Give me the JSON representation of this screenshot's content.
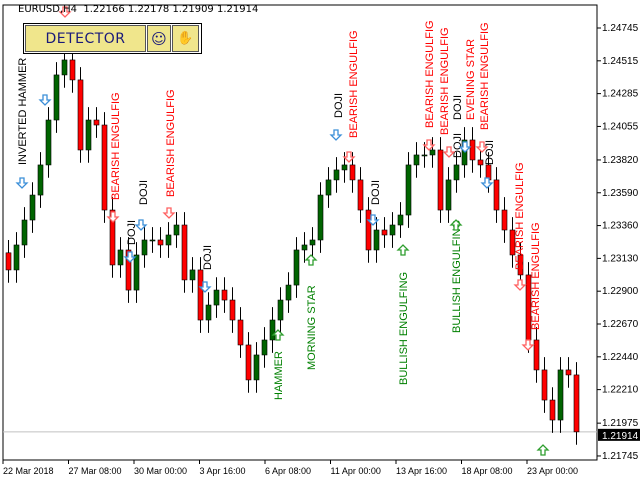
{
  "header": {
    "symbol": "EURUSD,H4",
    "ohlc": "1.22166 1.22178 1.21909 1.21914"
  },
  "panel": {
    "detector_label": "DETECTOR",
    "smiley_icon": "☺",
    "hand_icon": "✋"
  },
  "colors": {
    "bull": "#006400",
    "bear": "#ff0000",
    "bullish_label": "#008000",
    "bearish_label": "#ff0000",
    "neutral_label": "#000000",
    "doji_arrow": "#3b8fd8",
    "current_price_bg": "#000000"
  },
  "chart_data": {
    "type": "candlestick",
    "symbol": "EURUSD",
    "timeframe": "H4",
    "ylim": [
      1.217,
      1.25
    ],
    "y_ticks": [
      "1.24745",
      "1.24515",
      "1.24285",
      "1.24055",
      "1.23820",
      "1.23590",
      "1.23360",
      "1.23130",
      "1.22900",
      "1.22670",
      "1.22440",
      "1.22210",
      "1.21975",
      "1.21745"
    ],
    "current_price": "1.21914",
    "x_ticks": [
      "22 Mar 2018",
      "27 Mar 08:00",
      "30 Mar 00:00",
      "3 Apr 16:00",
      "6 Apr 08:00",
      "11 Apr 00:00",
      "13 Apr 16:00",
      "18 Apr 08:00",
      "23 Apr 00:00"
    ],
    "closes": [
      1.23049,
      1.23224,
      1.23399,
      1.23574,
      1.23785,
      1.241,
      1.24416,
      1.24521,
      1.24381,
      1.2389,
      1.241,
      1.24065,
      1.23469,
      1.23084,
      1.23189,
      1.22908,
      1.23154,
      1.23259,
      1.23259,
      1.23224,
      1.23294,
      1.23364,
      1.22979,
      1.23049,
      1.22698,
      1.22803,
      1.22908,
      1.22838,
      1.22698,
      1.22523,
      1.22278,
      1.22453,
      1.22558,
      1.22698,
      1.22838,
      1.22943,
      1.23189,
      1.23224,
      1.23259,
      1.23574,
      1.2368,
      1.2375,
      1.23785,
      1.2368,
      1.23469,
      1.23189,
      1.23329,
      1.23294,
      1.23364,
      1.23434,
      1.23785,
      1.23855,
      1.23855,
      1.2389,
      1.23469,
      1.2368,
      1.23785,
      1.2396,
      1.2382,
      1.23785,
      1.2368,
      1.23469,
      1.23329,
      1.23154,
      1.23014,
      1.22558,
      1.22348,
      1.22137,
      1.21997,
      1.22348,
      1.22313,
      1.21914
    ],
    "annotations": [
      {
        "text": "INVERTED HAMMER",
        "kind": "neutral"
      },
      {
        "text": "BEARISH ENGULFIG",
        "kind": "bearish"
      },
      {
        "text": "DOJI",
        "kind": "neutral"
      },
      {
        "text": "DOJI",
        "kind": "neutral"
      },
      {
        "text": "BEARISH ENGULFIG",
        "kind": "bearish"
      },
      {
        "text": "DOJI",
        "kind": "neutral"
      },
      {
        "text": "HAMMER",
        "kind": "bullish"
      },
      {
        "text": "MORNING STAR",
        "kind": "bullish"
      },
      {
        "text": "DOJI",
        "kind": "neutral"
      },
      {
        "text": "BEARISH ENGULFIG",
        "kind": "bearish"
      },
      {
        "text": "DOJI",
        "kind": "neutral"
      },
      {
        "text": "BULLISH ENGULFING",
        "kind": "bullish"
      },
      {
        "text": "BEARISH ENGULFIG",
        "kind": "bearish"
      },
      {
        "text": "BEARISH ENGULFIG",
        "kind": "bearish"
      },
      {
        "text": "EVENING STAR",
        "kind": "bearish"
      },
      {
        "text": "DOJI",
        "kind": "neutral"
      },
      {
        "text": "DOJI",
        "kind": "neutral"
      },
      {
        "text": "BULLISH ENGULFING",
        "kind": "bullish"
      },
      {
        "text": "BEARISH ENGULFIG",
        "kind": "bearish"
      },
      {
        "text": "DOJI",
        "kind": "neutral"
      },
      {
        "text": "BEARISH ENGULFIG",
        "kind": "bearish"
      },
      {
        "text": "BEARISH ENGULFIG",
        "kind": "bearish"
      }
    ]
  }
}
